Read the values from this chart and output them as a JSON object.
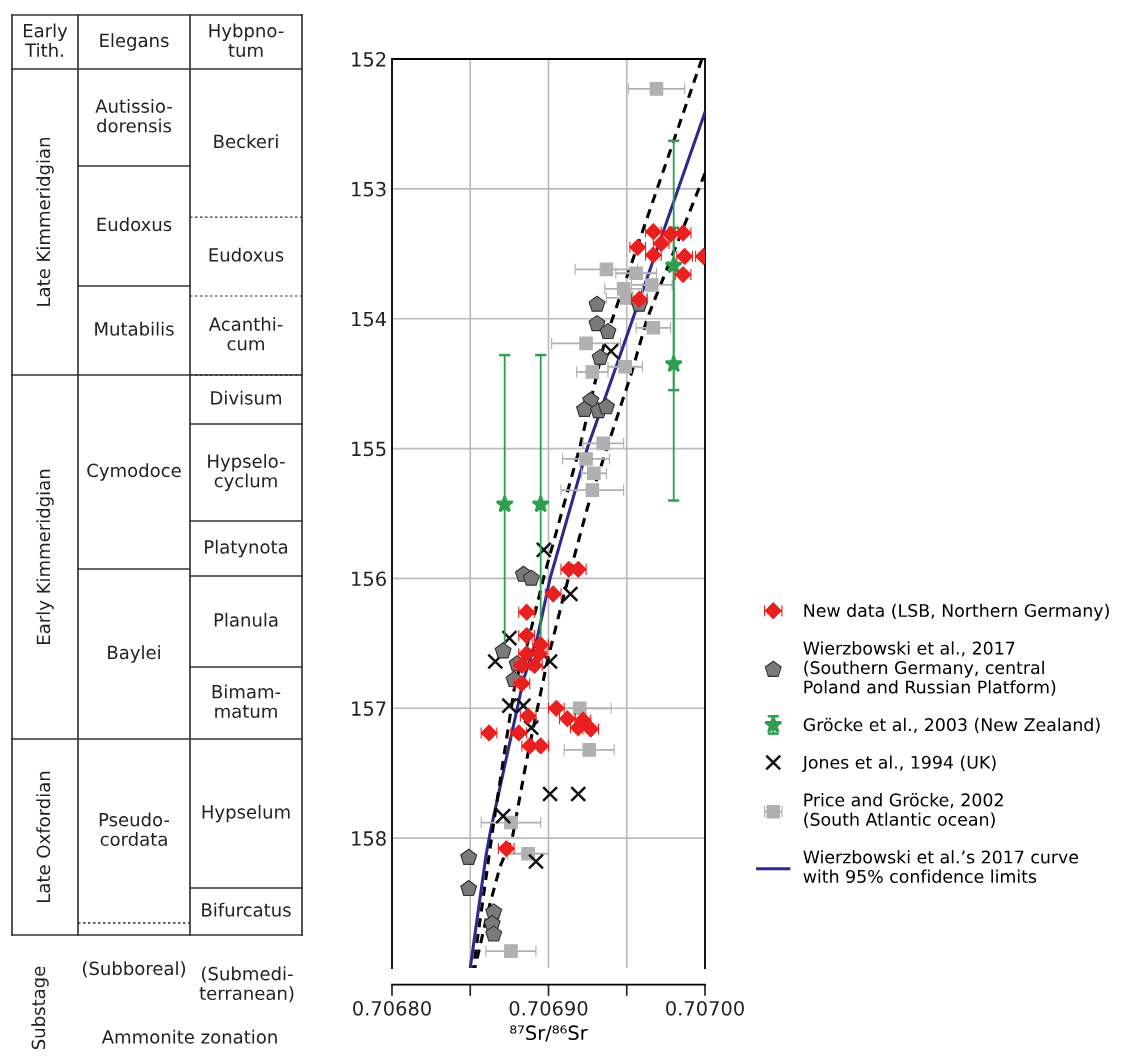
{
  "chart_data": [
    {
      "type": "other",
      "annotations": [
        "Early\nTith.",
        "Elegans",
        "Hybpno-\ntum",
        "Late Kimmeridgian",
        "Early Kimmeridgian",
        "Late Oxfordian",
        "Autissio-\ndorensis",
        "Eudoxus",
        "Mutabilis",
        "Cymodoce",
        "Baylei",
        "Pseudo-\ncordata",
        "Beckeri",
        "Eudoxus",
        "Acanthi-\ncum",
        "Divisum",
        "Hypselo-\ncyclum",
        "Platynota",
        "Planula",
        "Bimam-\nmatum",
        "Hypselum",
        "Bifurcatus",
        "Substage",
        "(Subboreal)",
        "(Submedi-\nterranean)",
        "Ammonite zonation"
      ]
    },
    {
      "type": "scatter",
      "xlabel": "⁸⁷Sr/⁸⁶Sr",
      "xlim": [
        0.7068,
        0.707
      ],
      "xticks": [
        {
          "value": 0.7068,
          "label": "0.70680"
        },
        {
          "value": 0.70685,
          "label": null
        },
        {
          "value": 0.7069,
          "label": "0.70690"
        },
        {
          "value": 0.70695,
          "label": null
        },
        {
          "value": 0.707,
          "label": "0.70700"
        }
      ],
      "ylim": [
        159,
        152
      ],
      "yticks": [
        152,
        153,
        154,
        155,
        156,
        157,
        158
      ],
      "grid": true,
      "legend": "right",
      "series": [
        {
          "name": "New data (LSB, Northern Germany)",
          "color": "#e8201f",
          "marker": "diamond",
          "x": [
            0.706967,
            0.706978,
            0.706986,
            0.706972,
            0.706957,
            0.706967,
            0.706987,
            0.706999,
            0.706986,
            0.706958,
            0.706913,
            0.706919,
            0.706903,
            0.706886,
            0.706886,
            0.706895,
            0.706886,
            0.706894,
            0.706883,
            0.706891,
            0.706883,
            0.706905,
            0.706887,
            0.706912,
            0.706922,
            0.706919,
            0.706927,
            0.706862,
            0.706881,
            0.706888,
            0.706895,
            0.706873
          ],
          "values": [
            153.33,
            153.35,
            153.34,
            153.42,
            153.45,
            153.51,
            153.52,
            153.52,
            153.66,
            153.85,
            155.93,
            155.93,
            156.12,
            156.26,
            156.44,
            156.51,
            156.58,
            156.58,
            156.67,
            156.67,
            156.81,
            157.0,
            157.06,
            157.08,
            157.09,
            157.15,
            157.16,
            157.19,
            157.19,
            157.29,
            157.29,
            158.08
          ],
          "xerrors": [
            5e-06,
            5e-06,
            5e-06,
            5e-06,
            5e-06,
            5e-06,
            5e-06,
            5e-06,
            5e-06,
            5e-06,
            5e-06,
            5e-06,
            5e-06,
            5e-06,
            5e-06,
            5e-06,
            5e-06,
            5e-06,
            5e-06,
            5e-06,
            5e-06,
            5e-06,
            5e-06,
            5e-06,
            5e-06,
            5e-06,
            5e-06,
            5e-06,
            5e-06,
            5e-06,
            5e-06,
            5e-06
          ]
        },
        {
          "name": "Wierzbowski et al., 2017\n(Southern Germany, central\nPoland and Russian Platform)",
          "color": "#7a7a7a",
          "x": [
            0.706931,
            0.706931,
            0.706938,
            0.706933,
            0.706958,
            0.706927,
            0.706923,
            0.706932,
            0.706937,
            0.706884,
            0.706889,
            0.706871,
            0.70688,
            0.706878,
            0.706849,
            0.706849,
            0.706865,
            0.706864,
            0.706865
          ],
          "values": [
            153.89,
            154.04,
            154.1,
            154.3,
            153.89,
            154.63,
            154.7,
            154.71,
            154.68,
            155.97,
            156.0,
            156.56,
            156.66,
            156.78,
            158.15,
            158.39,
            158.57,
            158.66,
            158.74
          ]
        },
        {
          "name": "Gröcke et al., 2003 (New Zealand)",
          "color": "#2e9e4f",
          "marker": "star",
          "x": [
            0.706872,
            0.706895,
            0.70698,
            0.70698
          ],
          "values": [
            155.43,
            155.43,
            153.59,
            154.35
          ],
          "errors": [
            1.15,
            1.15,
            0.96,
            1.05
          ]
        },
        {
          "name": "Jones et al., 1994 (UK)",
          "color": "#111111",
          "marker": "cross",
          "x": [
            0.70694,
            0.706897,
            0.706914,
            0.706875,
            0.706866,
            0.706901,
            0.706875,
            0.706884,
            0.706889,
            0.706901,
            0.706919,
            0.706871,
            0.706892
          ],
          "values": [
            154.25,
            155.78,
            156.12,
            156.46,
            156.64,
            156.64,
            156.98,
            156.98,
            157.15,
            157.66,
            157.66,
            157.83,
            158.18
          ]
        },
        {
          "name": "Price and Gröcke, 2002\n(South Atlantic ocean)",
          "color": "#b0b0b0",
          "marker": "square",
          "x": [
            0.706969,
            0.706937,
            0.706956,
            0.706966,
            0.706948,
            0.70695,
            0.706967,
            0.706924,
            0.706949,
            0.706928,
            0.706935,
            0.706924,
            0.706929,
            0.706928,
            0.70692,
            0.706926,
            0.706876,
            0.706887,
            0.706876
          ],
          "values": [
            152.23,
            153.62,
            153.65,
            153.74,
            153.77,
            153.84,
            154.07,
            154.19,
            154.37,
            154.41,
            154.96,
            155.08,
            155.19,
            155.32,
            157.0,
            157.32,
            157.88,
            158.12,
            158.87
          ],
          "xerrors": [
            1.8e-05,
            2e-05,
            1.3e-05,
            1.3e-05,
            1.2e-05,
            1.3e-05,
            1.1e-05,
            2.2e-05,
            1.1e-05,
            1e-05,
            1.3e-05,
            1.5e-05,
            8e-06,
            2e-05,
            2e-05,
            1.6e-05,
            1.9e-05,
            1.3e-05,
            1.6e-05
          ]
        },
        {
          "type": "line",
          "name": "Wierzbowski et al.’s 2017 curve\nwith 95% confidence limits",
          "color": "#2e2a8c",
          "line_style": "solid",
          "marker": "none",
          "x": [
            0.707,
            0.706942,
            0.706925,
            0.706901,
            0.706893,
            0.706884,
            0.706863,
            0.70686,
            0.70685
          ],
          "values": [
            152.41,
            154.41,
            154.99,
            156.0,
            156.45,
            156.78,
            157.94,
            158.14,
            159.0
          ]
        },
        {
          "type": "line",
          "color": "#000000",
          "line_style": "dashed",
          "marker": "none",
          "x": [
            0.706998,
            0.706936,
            0.70692,
            0.706897,
            0.706884,
            0.706879,
            0.706865,
            0.706852
          ],
          "values": [
            152.0,
            154.17,
            154.99,
            155.99,
            156.63,
            156.78,
            157.88,
            159.0
          ]
        },
        {
          "type": "line",
          "color": "#000000",
          "line_style": "dashed",
          "marker": "none",
          "x": [
            0.707,
            0.706963,
            0.706953,
            0.706925,
            0.70691,
            0.706899,
            0.706886,
            0.706877,
            0.706869,
            0.706861,
            0.706853
          ],
          "values": [
            152.88,
            154.0,
            154.42,
            155.45,
            156.12,
            156.65,
            157.4,
            157.99,
            158.22,
            158.58,
            159.0
          ]
        }
      ]
    }
  ]
}
